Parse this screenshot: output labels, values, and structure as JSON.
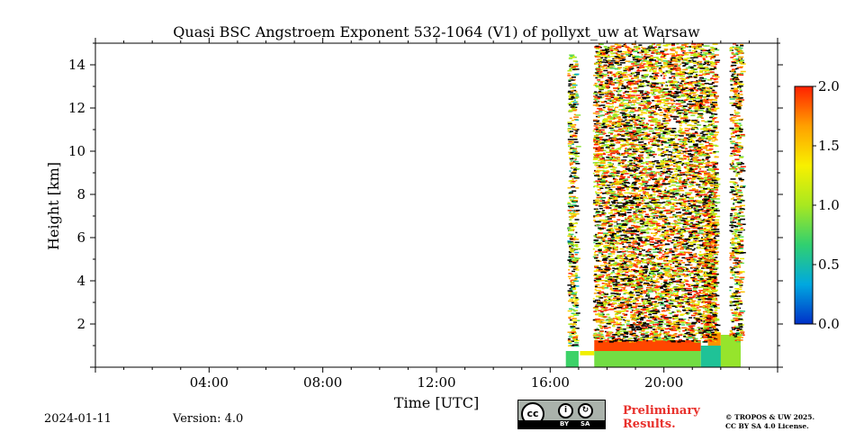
{
  "chart_data": {
    "type": "heatmap",
    "title": "Quasi BSC Angstroem Exponent 532-1064 (V1) of pollyxt_uw at Warsaw",
    "xlabel": "Time [UTC]",
    "ylabel": "Height [km]",
    "x_range_hours": [
      0,
      24
    ],
    "y_range_km": [
      0,
      15
    ],
    "x_ticks": [
      {
        "hour": 4,
        "label": "04:00"
      },
      {
        "hour": 8,
        "label": "08:00"
      },
      {
        "hour": 12,
        "label": "12:00"
      },
      {
        "hour": 16,
        "label": "16:00"
      },
      {
        "hour": 20,
        "label": "20:00"
      }
    ],
    "y_ticks": [
      {
        "value": 2,
        "label": "2"
      },
      {
        "value": 4,
        "label": "4"
      },
      {
        "value": 6,
        "label": "6"
      },
      {
        "value": 8,
        "label": "8"
      },
      {
        "value": 10,
        "label": "10"
      },
      {
        "value": 12,
        "label": "12"
      },
      {
        "value": 14,
        "label": "14"
      }
    ],
    "colorbar": {
      "range": [
        0.0,
        2.0
      ],
      "ticks": [
        {
          "value": 0.0,
          "label": "0.0"
        },
        {
          "value": 0.5,
          "label": "0.5"
        },
        {
          "value": 1.0,
          "label": "1.0"
        },
        {
          "value": 1.5,
          "label": "1.5"
        },
        {
          "value": 2.0,
          "label": "2.0"
        }
      ],
      "colormap": [
        "#0030c8",
        "#00a8e0",
        "#30d070",
        "#a8e820",
        "#f8f000",
        "#ffa000",
        "#ff2000"
      ]
    },
    "layers": [
      {
        "t0": 16.55,
        "t1": 17.0,
        "h0": 0.0,
        "h1": 0.75,
        "value": 0.7
      },
      {
        "t0": 17.05,
        "t1": 17.55,
        "h0": 0.55,
        "h1": 0.75,
        "value": 1.3
      },
      {
        "t0": 17.55,
        "t1": 21.3,
        "h0": 0.0,
        "h1": 0.8,
        "value": 0.85
      },
      {
        "t0": 17.55,
        "t1": 21.3,
        "h0": 0.75,
        "h1": 1.25,
        "value": 1.9
      },
      {
        "t0": 21.3,
        "t1": 22.7,
        "h0": 0.0,
        "h1": 1.0,
        "value": 0.55
      },
      {
        "t0": 21.55,
        "t1": 22.0,
        "h0": 1.0,
        "h1": 1.6,
        "value": 1.7
      },
      {
        "t0": 22.0,
        "t1": 22.7,
        "h0": 0.0,
        "h1": 1.5,
        "value": 0.95
      }
    ],
    "sparse_regions": [
      {
        "t0": 17.5,
        "t1": 21.8,
        "h0": 1.2,
        "h1": 15.0,
        "value": 1.5
      },
      {
        "t0": 21.35,
        "t1": 21.8,
        "h0": 1.2,
        "h1": 9.0,
        "value": 1.6
      },
      {
        "t0": 22.3,
        "t1": 22.7,
        "h0": 1.2,
        "h1": 15.0,
        "value": 1.4
      },
      {
        "t0": 16.6,
        "t1": 16.9,
        "h0": 1.0,
        "h1": 14.5,
        "value": 1.2
      }
    ]
  },
  "footer": {
    "date": "2024-01-11",
    "version": "Version: 4.0",
    "preliminary_line1": "Preliminary",
    "preliminary_line2": "Results.",
    "license_line1": "© TROPOS & UW 2025.",
    "license_line2": "CC BY SA 4.0 License.",
    "cc_label": "cc",
    "cc_by": "BY",
    "cc_sa": "SA"
  }
}
